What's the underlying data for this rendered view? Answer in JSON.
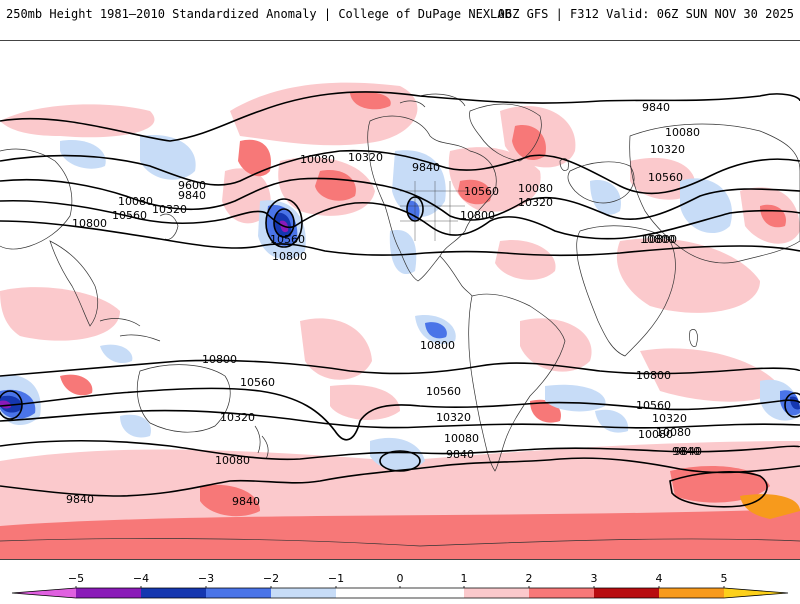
{
  "header": {
    "left_title": "250mb Height 1981–2010 Standardized Anomaly | College of DuPage NEXLAB",
    "right_title": "06Z GFS | F312 Valid: 06Z SUN NOV 30 2025"
  },
  "colors": {
    "neg5": "#e060e0",
    "neg4": "#8a1ab8",
    "neg3": "#1537b0",
    "neg2": "#4a74e8",
    "neg1": "#c7dcf7",
    "zero": "#ffffff",
    "pos1": "#fbc9cc",
    "pos2": "#f77878",
    "pos3": "#e0252a",
    "pos4": "#b80d10",
    "pos5": "#f79a1c",
    "pos5b": "#fcd01a"
  },
  "contour_labels": [
    {
      "text": "9840",
      "name": "contour-9840-natl"
    },
    {
      "text": "10080",
      "name": "contour-10080-europe"
    },
    {
      "text": "10320",
      "name": "contour-10320-europe"
    },
    {
      "text": "10560",
      "name": "contour-10560-asia"
    },
    {
      "text": "10800",
      "name": "contour-10800-asia"
    },
    {
      "text": "10080",
      "name": "contour-10080-npac"
    },
    {
      "text": "10320",
      "name": "contour-10320-npac"
    },
    {
      "text": "9840",
      "name": "contour-9840-na"
    },
    {
      "text": "10560",
      "name": "contour-10560-na"
    },
    {
      "text": "10080",
      "name": "contour-10080-na"
    },
    {
      "text": "10320",
      "name": "contour-10320-na"
    },
    {
      "text": "10800",
      "name": "contour-10800-na"
    },
    {
      "text": "9600",
      "name": "contour-9600-wpac"
    },
    {
      "text": "9840",
      "name": "contour-9840-wpac"
    },
    {
      "text": "10080",
      "name": "contour-10080-wpac"
    },
    {
      "text": "10320",
      "name": "contour-10320-wpac"
    },
    {
      "text": "10560",
      "name": "contour-10560-wpac"
    },
    {
      "text": "10800",
      "name": "contour-10800-wpac"
    },
    {
      "text": "10560",
      "name": "contour-10560-lowcenter"
    },
    {
      "text": "10800",
      "name": "contour-10800-lowcenter"
    },
    {
      "text": "10800",
      "name": "contour-10800-epac"
    },
    {
      "text": "10800",
      "name": "contour-10800-sio"
    },
    {
      "text": "10800",
      "name": "contour-10800-spac"
    },
    {
      "text": "10560",
      "name": "contour-10560-spac"
    },
    {
      "text": "10320",
      "name": "contour-10320-spac"
    },
    {
      "text": "10080",
      "name": "contour-10080-spac"
    },
    {
      "text": "9840",
      "name": "contour-9840-spac"
    },
    {
      "text": "10080",
      "name": "contour-10080-sws"
    },
    {
      "text": "9840",
      "name": "contour-9840-sws"
    },
    {
      "text": "10560",
      "name": "contour-10560-satl"
    },
    {
      "text": "10320",
      "name": "contour-10320-satl"
    },
    {
      "text": "10080",
      "name": "contour-10080-satl"
    },
    {
      "text": "9840",
      "name": "contour-9840-satl"
    },
    {
      "text": "10800",
      "name": "contour-10800-sio-east"
    },
    {
      "text": "10560",
      "name": "contour-10560-sio-east"
    },
    {
      "text": "10320",
      "name": "contour-10320-sio-east"
    },
    {
      "text": "10080",
      "name": "contour-10080-sio-east"
    },
    {
      "text": "9840",
      "name": "contour-9840-sio-east"
    },
    {
      "text": "9840",
      "name": "contour-9840-aus"
    }
  ],
  "colorbar": {
    "ticks": [
      "−5",
      "−4",
      "−3",
      "−2",
      "−1",
      "0",
      "1",
      "2",
      "3",
      "4",
      "5"
    ]
  }
}
